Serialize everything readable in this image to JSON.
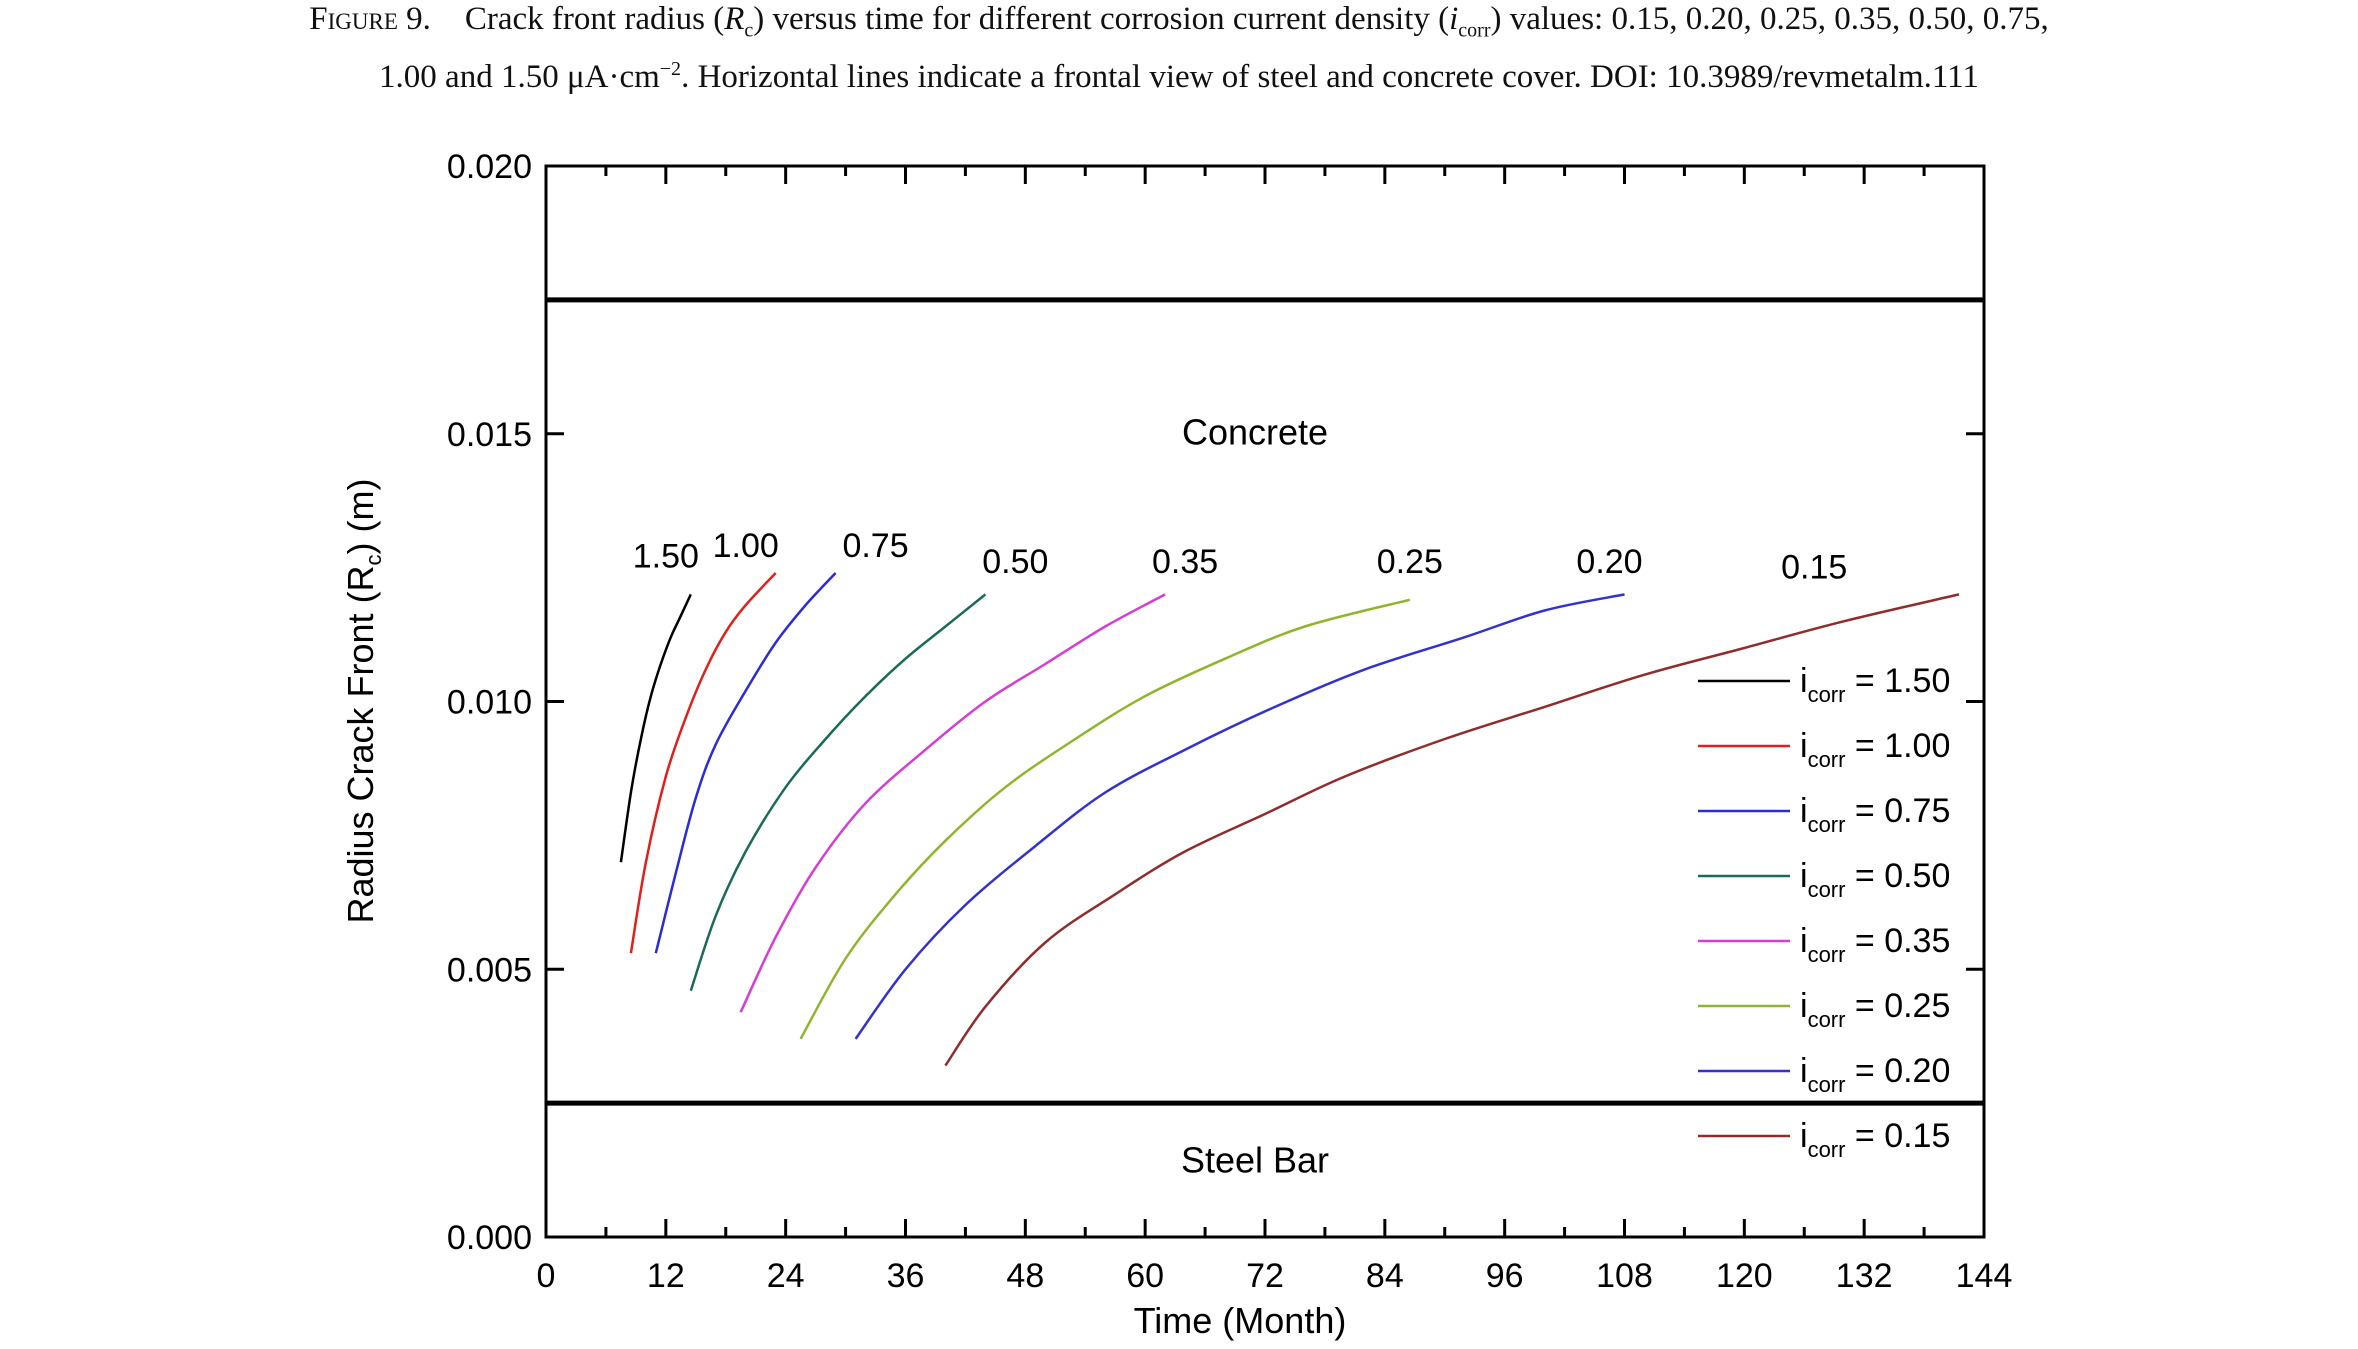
{
  "caption": {
    "label": "Figure 9.",
    "l1a": "Crack front radius (",
    "l1b": "R",
    "l1c": "c",
    "l1d": ") versus time for different corrosion current density (",
    "l1e": "i",
    "l1f": "corr",
    "l1g": ") values: 0.15, 0.20, 0.25, 0.35, 0.50, 0.75,",
    "l2a": "1.00 and 1.50 μA·cm",
    "l2b": "−2",
    "l2c": ". Horizontal lines indicate a frontal view of steel and concrete cover. DOI: 10.3989/revmetalm.111"
  },
  "chart_data": {
    "type": "line",
    "xlabel": "Time (Month)",
    "ylabel_main": "Radius Crack Front (R",
    "ylabel_sub": "c",
    "ylabel_end": ") (m)",
    "xlim": [
      0,
      144
    ],
    "ylim": [
      0,
      0.02
    ],
    "xticks": [
      "0",
      "12",
      "24",
      "36",
      "48",
      "60",
      "72",
      "84",
      "96",
      "108",
      "120",
      "132",
      "144"
    ],
    "yticks": [
      "0.000",
      "0.005",
      "0.010",
      "0.015",
      "0.020"
    ],
    "region_lines": [
      0.0175,
      0.0025
    ],
    "region_labels": [
      {
        "text": "Concrete",
        "x": 71,
        "y": 0.0148
      },
      {
        "text": "Steel Bar",
        "x": 71,
        "y": 0.0012
      }
    ],
    "legend": {
      "prefix": "i",
      "sub": "corr",
      "placement": "lower-right"
    },
    "series": [
      {
        "name": "1.50",
        "legend": " = 1.50",
        "color": "#000000",
        "label_pos": [
          12,
          0.0125
        ],
        "x": [
          7.5,
          8.5,
          9.5,
          10.5,
          11.5,
          12.5,
          13.5,
          14.5
        ],
        "y": [
          0.007,
          0.0083,
          0.0093,
          0.0101,
          0.0107,
          0.0112,
          0.0116,
          0.012
        ]
      },
      {
        "name": "1.00",
        "legend": " = 1.00",
        "color": "#e0201b",
        "label_pos": [
          20,
          0.0127
        ],
        "x": [
          8.5,
          10,
          12,
          14,
          16,
          18,
          20,
          23
        ],
        "y": [
          0.0053,
          0.007,
          0.0086,
          0.0097,
          0.0106,
          0.0113,
          0.0118,
          0.0124
        ]
      },
      {
        "name": "0.75",
        "legend": " = 0.75",
        "color": "#2b2bd8",
        "label_pos": [
          33,
          0.0127
        ],
        "x": [
          11,
          13,
          15,
          17,
          20,
          23,
          26,
          29
        ],
        "y": [
          0.0053,
          0.0068,
          0.0082,
          0.0092,
          0.0102,
          0.0111,
          0.0118,
          0.0124
        ]
      },
      {
        "name": "0.50",
        "legend": " = 0.50",
        "color": "#1a6a5a",
        "label_pos": [
          47,
          0.0124
        ],
        "x": [
          14.5,
          17,
          20,
          24,
          28,
          32,
          36,
          40,
          44
        ],
        "y": [
          0.0046,
          0.006,
          0.0072,
          0.0084,
          0.0093,
          0.0101,
          0.0108,
          0.0114,
          0.012
        ]
      },
      {
        "name": "0.35",
        "legend": " = 0.35",
        "color": "#d43ed4",
        "label_pos": [
          64,
          0.0124
        ],
        "x": [
          19.5,
          23,
          27,
          32,
          38,
          44,
          50,
          56,
          62
        ],
        "y": [
          0.0042,
          0.0056,
          0.0069,
          0.0081,
          0.0091,
          0.01,
          0.0107,
          0.0114,
          0.012
        ]
      },
      {
        "name": "0.25",
        "legend": " = 0.25",
        "color": "#8fb52c",
        "label_pos": [
          86.5,
          0.0124
        ],
        "x": [
          25.5,
          30,
          35,
          40,
          46,
          53,
          60,
          68,
          76,
          86.5
        ],
        "y": [
          0.0037,
          0.0052,
          0.0064,
          0.0074,
          0.0084,
          0.0093,
          0.0101,
          0.0108,
          0.0114,
          0.0119
        ]
      },
      {
        "name": "0.20",
        "legend": " = 0.20",
        "color": "#3333cc",
        "label_pos": [
          106.5,
          0.0124
        ],
        "x": [
          31,
          36,
          42,
          49,
          56,
          64,
          73,
          82,
          92,
          100,
          108
        ],
        "y": [
          0.0037,
          0.005,
          0.0062,
          0.0073,
          0.0083,
          0.0091,
          0.0099,
          0.0106,
          0.0112,
          0.0117,
          0.012
        ]
      },
      {
        "name": "0.15",
        "legend": " = 0.15",
        "color": "#8e2d2d",
        "label_pos": [
          127,
          0.0123
        ],
        "x": [
          40,
          44,
          50,
          57,
          64,
          72,
          80,
          90,
          100,
          110,
          120,
          130,
          141.5
        ],
        "y": [
          0.0032,
          0.0043,
          0.0055,
          0.0064,
          0.0072,
          0.0079,
          0.0086,
          0.0093,
          0.0099,
          0.0105,
          0.011,
          0.0115,
          0.012
        ]
      }
    ]
  }
}
